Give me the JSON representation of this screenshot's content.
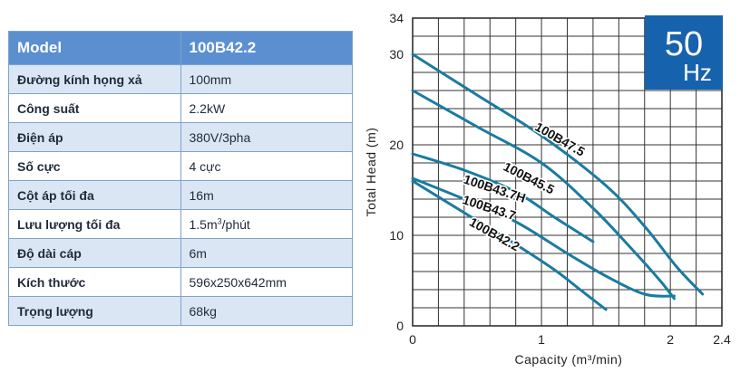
{
  "table": {
    "header": {
      "label": "Model",
      "value": "100B42.2"
    },
    "rows": [
      {
        "label": "Đường kính họng xả",
        "value": "100mm"
      },
      {
        "label": "Công suất",
        "value": "2.2kW"
      },
      {
        "label": "Điện áp",
        "value": "380V/3pha"
      },
      {
        "label": "Số cực",
        "value": "4 cực"
      },
      {
        "label": "Cột áp tối đa",
        "value": "16m"
      },
      {
        "label": "Lưu lượng tối đa",
        "value": "1.5m",
        "sup": "3",
        "suffix": "/phút"
      },
      {
        "label": "Độ dài cáp",
        "value": "6m"
      },
      {
        "label": "Kích thước",
        "value": "596x250x642mm"
      },
      {
        "label": "Trọng lượng",
        "value": "68kg"
      }
    ]
  },
  "badge": {
    "big": "50",
    "small": "Hz",
    "color": "#1762ad"
  },
  "chart_data": {
    "type": "line",
    "xlabel": "Capacity (m³/min)",
    "ylabel": "Total Head (m)",
    "xlim": [
      0,
      2.4
    ],
    "ylim": [
      0,
      34
    ],
    "x_ticks": [
      {
        "value": 0,
        "label": "0"
      },
      {
        "value": 1,
        "label": "1"
      },
      {
        "value": 2,
        "label": "2"
      },
      {
        "value": 2.4,
        "label": "2.4"
      }
    ],
    "y_ticks": [
      {
        "value": 0,
        "label": "0"
      },
      {
        "value": 10,
        "label": "10"
      },
      {
        "value": 20,
        "label": "20"
      },
      {
        "value": 30,
        "label": "30"
      },
      {
        "value": 34,
        "label": "34"
      }
    ],
    "grid": true,
    "line_color": "#1a7ba0",
    "series": [
      {
        "name": "100B47.5",
        "points": [
          [
            0,
            30
          ],
          [
            0.5,
            25.5
          ],
          [
            1,
            21
          ],
          [
            1.5,
            15.5
          ],
          [
            1.8,
            11
          ],
          [
            2.05,
            6.5
          ],
          [
            2.25,
            3.5
          ]
        ]
      },
      {
        "name": "100B45.5",
        "points": [
          [
            0,
            26
          ],
          [
            0.5,
            22
          ],
          [
            1,
            18
          ],
          [
            1.4,
            13
          ],
          [
            1.7,
            8.5
          ],
          [
            1.92,
            5
          ],
          [
            2.03,
            3
          ]
        ]
      },
      {
        "name": "100B43.7H",
        "points": [
          [
            0,
            19
          ],
          [
            0.4,
            17.2
          ],
          [
            0.8,
            14.8
          ],
          [
            1.1,
            12
          ],
          [
            1.4,
            9.3
          ]
        ]
      },
      {
        "name": "100B43.7",
        "points": [
          [
            0,
            16.3
          ],
          [
            0.4,
            14
          ],
          [
            0.8,
            11.5
          ],
          [
            1.2,
            8
          ],
          [
            1.5,
            5.5
          ],
          [
            1.8,
            3.5
          ],
          [
            2.03,
            3.3
          ]
        ]
      },
      {
        "name": "100B42.2",
        "points": [
          [
            0,
            16
          ],
          [
            0.4,
            12.5
          ],
          [
            0.8,
            9
          ],
          [
            1.1,
            6.2
          ],
          [
            1.3,
            4
          ],
          [
            1.5,
            1.8
          ]
        ]
      }
    ]
  }
}
